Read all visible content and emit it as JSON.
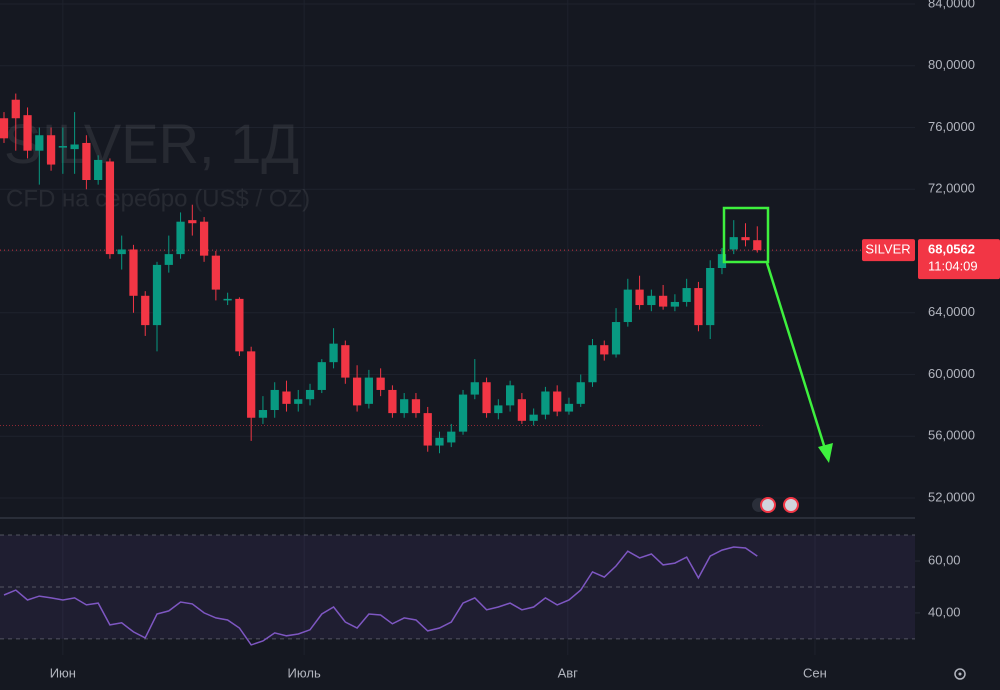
{
  "chart_data": {
    "type": "candlestick",
    "title": "SILVER, 1Д",
    "subtitle": "CFD на серебро (US$ / OZ)",
    "symbol": "SILVER",
    "last_price": {
      "value": 68.0562,
      "label": "68,0562"
    },
    "countdown": "11:04:09",
    "up_color": "#089981",
    "down_color": "#f23645",
    "open": [
      76.6,
      77.8,
      76.8,
      74.5,
      75.5,
      74.7,
      74.6,
      75,
      72.6,
      73.8,
      67.8,
      68.1,
      65.1,
      63.2,
      67.1,
      67.8,
      70,
      69.9,
      67.7,
      64.8,
      64.9,
      61.5,
      57.2,
      57.7,
      58.9,
      58.1,
      58.4,
      59,
      60.8,
      61.9,
      59.8,
      58.1,
      59.8,
      59,
      57.5,
      58.4,
      57.5,
      55.4,
      55.6,
      56.3,
      58.7,
      59.5,
      57.5,
      58,
      58.4,
      57,
      57.4,
      58.9,
      57.6,
      58.1,
      59.5,
      61.9,
      61.3,
      63.4,
      65.5,
      64.5,
      65.1,
      64.4,
      64.7,
      65.6,
      63.2,
      66.9,
      68.1,
      68.9,
      68.7
    ],
    "high": [
      77,
      78.2,
      77.3,
      76,
      76,
      76,
      77,
      75.5,
      74.2,
      74,
      69,
      68.4,
      65.4,
      67.3,
      69,
      70.5,
      71,
      70.2,
      68,
      65.3,
      65,
      61.8,
      58.6,
      59.5,
      59.6,
      59,
      59.4,
      61,
      63,
      62.2,
      60.6,
      60.3,
      60.4,
      59.3,
      58.8,
      58.8,
      57.9,
      56.3,
      56.8,
      59,
      61,
      59.8,
      58.4,
      59.6,
      58.8,
      57.8,
      59.2,
      59.3,
      58.5,
      60,
      62.3,
      62.2,
      64.3,
      66.2,
      66.4,
      65.5,
      65.8,
      65.2,
      66.2,
      66,
      67.4,
      68.2,
      70,
      69.8,
      69.6
    ],
    "low": [
      75,
      74.5,
      74,
      72.3,
      73.2,
      73,
      73,
      72,
      72.3,
      67.5,
      66.8,
      64,
      62.5,
      61.5,
      66.6,
      67.5,
      69,
      67.3,
      64.8,
      64.5,
      61.2,
      55.7,
      56.8,
      57.2,
      57.6,
      57.6,
      58,
      58.8,
      60.4,
      59.4,
      57.6,
      57.8,
      58.6,
      57.2,
      57.2,
      57.2,
      55,
      54.9,
      55.3,
      56.1,
      58.4,
      57.2,
      57.1,
      57.6,
      56.8,
      56.7,
      57.1,
      57.3,
      57.4,
      57.9,
      59.2,
      60.9,
      61.1,
      63.1,
      64.2,
      64.1,
      64.2,
      64.1,
      64.4,
      62.8,
      62.3,
      66.5,
      67.8,
      68.3,
      67.9
    ],
    "close": [
      75.3,
      76.6,
      74.5,
      75.5,
      73.6,
      74.8,
      74.9,
      72.6,
      73.9,
      67.8,
      68.1,
      65.1,
      63.2,
      67.1,
      67.8,
      69.9,
      69.8,
      67.7,
      65.5,
      64.9,
      61.5,
      57.2,
      57.7,
      59,
      58.1,
      58.4,
      59,
      60.8,
      62,
      59.8,
      58,
      59.8,
      59,
      57.5,
      58.4,
      57.5,
      55.4,
      55.9,
      56.3,
      58.7,
      59.5,
      57.5,
      58,
      59.3,
      57,
      57.4,
      58.9,
      57.6,
      58.1,
      59.5,
      61.9,
      61.3,
      63.4,
      65.5,
      64.5,
      65.1,
      64.4,
      64.7,
      65.6,
      63.2,
      66.9,
      67.8,
      68.9,
      68.7,
      68.0562
    ],
    "xlim": [
      -0.34,
      77.4
    ],
    "xticks": [
      {
        "value": 5,
        "label": "Июн"
      },
      {
        "value": 25.5,
        "label": "Июль"
      },
      {
        "value": 47.9,
        "label": "Авг"
      },
      {
        "value": 68.9,
        "label": "Сен"
      }
    ],
    "ylim": [
      50.9,
      84.26
    ],
    "yticks": [
      {
        "value": 52,
        "label": "52,0000"
      },
      {
        "value": 56,
        "label": "56,0000"
      },
      {
        "value": 60,
        "label": "60,0000"
      },
      {
        "value": 64,
        "label": "64,0000"
      },
      {
        "value": 68,
        "label": "68,0000"
      },
      {
        "value": 72,
        "label": "72,0000"
      },
      {
        "value": 76,
        "label": "76,0000"
      },
      {
        "value": 80,
        "label": "80,0000"
      },
      {
        "value": 84,
        "label": "84,0000"
      }
    ],
    "support_level": 56.7,
    "indicator": {
      "type": "line",
      "color": "#7e57c2",
      "values": [
        46.9,
        48.8,
        45,
        46.5,
        45.8,
        45,
        45.8,
        43.1,
        43.8,
        35.4,
        36.2,
        32.7,
        30.4,
        39.6,
        40.8,
        44.2,
        43.5,
        40,
        38.1,
        37.3,
        34.2,
        27.7,
        29.2,
        32.3,
        31.2,
        31.9,
        33.5,
        39.6,
        42.3,
        36.5,
        34.2,
        39.6,
        39.2,
        35.8,
        38.1,
        37.3,
        33.1,
        34.2,
        36.5,
        43.8,
        45.8,
        41.2,
        42.3,
        43.8,
        41.2,
        42.3,
        45.8,
        43.1,
        45,
        48.8,
        55.8,
        53.8,
        58.1,
        63.8,
        61.2,
        62.7,
        58.5,
        59.2,
        61.5,
        53.5,
        61.9,
        64.2,
        65.4,
        65,
        61.9
      ],
      "ylim": [
        23.8,
        75.8
      ],
      "yticks": [
        {
          "value": 40,
          "label": "40,00"
        },
        {
          "value": 60,
          "label": "60,00"
        }
      ],
      "levels": [
        30,
        50,
        70
      ]
    }
  }
}
